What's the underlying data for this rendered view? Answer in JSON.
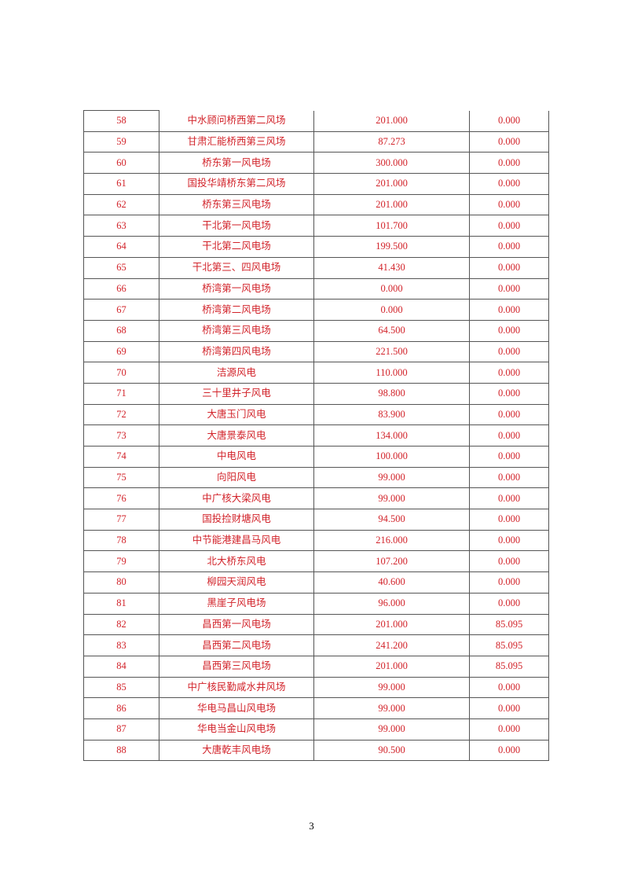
{
  "table": {
    "rows": [
      [
        "58",
        "中水顾问桥西第二风场",
        "201.000",
        "0.000"
      ],
      [
        "59",
        "甘肃汇能桥西第三风场",
        "87.273",
        "0.000"
      ],
      [
        "60",
        "桥东第一风电场",
        "300.000",
        "0.000"
      ],
      [
        "61",
        "国投华靖桥东第二风场",
        "201.000",
        "0.000"
      ],
      [
        "62",
        "桥东第三风电场",
        "201.000",
        "0.000"
      ],
      [
        "63",
        "干北第一风电场",
        "101.700",
        "0.000"
      ],
      [
        "64",
        "干北第二风电场",
        "199.500",
        "0.000"
      ],
      [
        "65",
        "干北第三、四风电场",
        "41.430",
        "0.000"
      ],
      [
        "66",
        "桥湾第一风电场",
        "0.000",
        "0.000"
      ],
      [
        "67",
        "桥湾第二风电场",
        "0.000",
        "0.000"
      ],
      [
        "68",
        "桥湾第三风电场",
        "64.500",
        "0.000"
      ],
      [
        "69",
        "桥湾第四风电场",
        "221.500",
        "0.000"
      ],
      [
        "70",
        "洁源风电",
        "110.000",
        "0.000"
      ],
      [
        "71",
        "三十里井子风电",
        "98.800",
        "0.000"
      ],
      [
        "72",
        "大唐玉门风电",
        "83.900",
        "0.000"
      ],
      [
        "73",
        "大唐景泰风电",
        "134.000",
        "0.000"
      ],
      [
        "74",
        "中电风电",
        "100.000",
        "0.000"
      ],
      [
        "75",
        "向阳风电",
        "99.000",
        "0.000"
      ],
      [
        "76",
        "中广核大梁风电",
        "99.000",
        "0.000"
      ],
      [
        "77",
        "国投捡财塘风电",
        "94.500",
        "0.000"
      ],
      [
        "78",
        "中节能港建昌马风电",
        "216.000",
        "0.000"
      ],
      [
        "79",
        "北大桥东风电",
        "107.200",
        "0.000"
      ],
      [
        "80",
        "柳园天润风电",
        "40.600",
        "0.000"
      ],
      [
        "81",
        "黑崖子风电场",
        "96.000",
        "0.000"
      ],
      [
        "82",
        "昌西第一风电场",
        "201.000",
        "85.095"
      ],
      [
        "83",
        "昌西第二风电场",
        "241.200",
        "85.095"
      ],
      [
        "84",
        "昌西第三风电场",
        "201.000",
        "85.095"
      ],
      [
        "85",
        "中广核民勤咸水井风场",
        "99.000",
        "0.000"
      ],
      [
        "86",
        "华电马昌山风电场",
        "99.000",
        "0.000"
      ],
      [
        "87",
        "华电当金山风电场",
        "99.000",
        "0.000"
      ],
      [
        "88",
        "大唐乾丰风电场",
        "90.500",
        "0.000"
      ]
    ]
  },
  "text_color": "#d2232a",
  "page_number": "3"
}
